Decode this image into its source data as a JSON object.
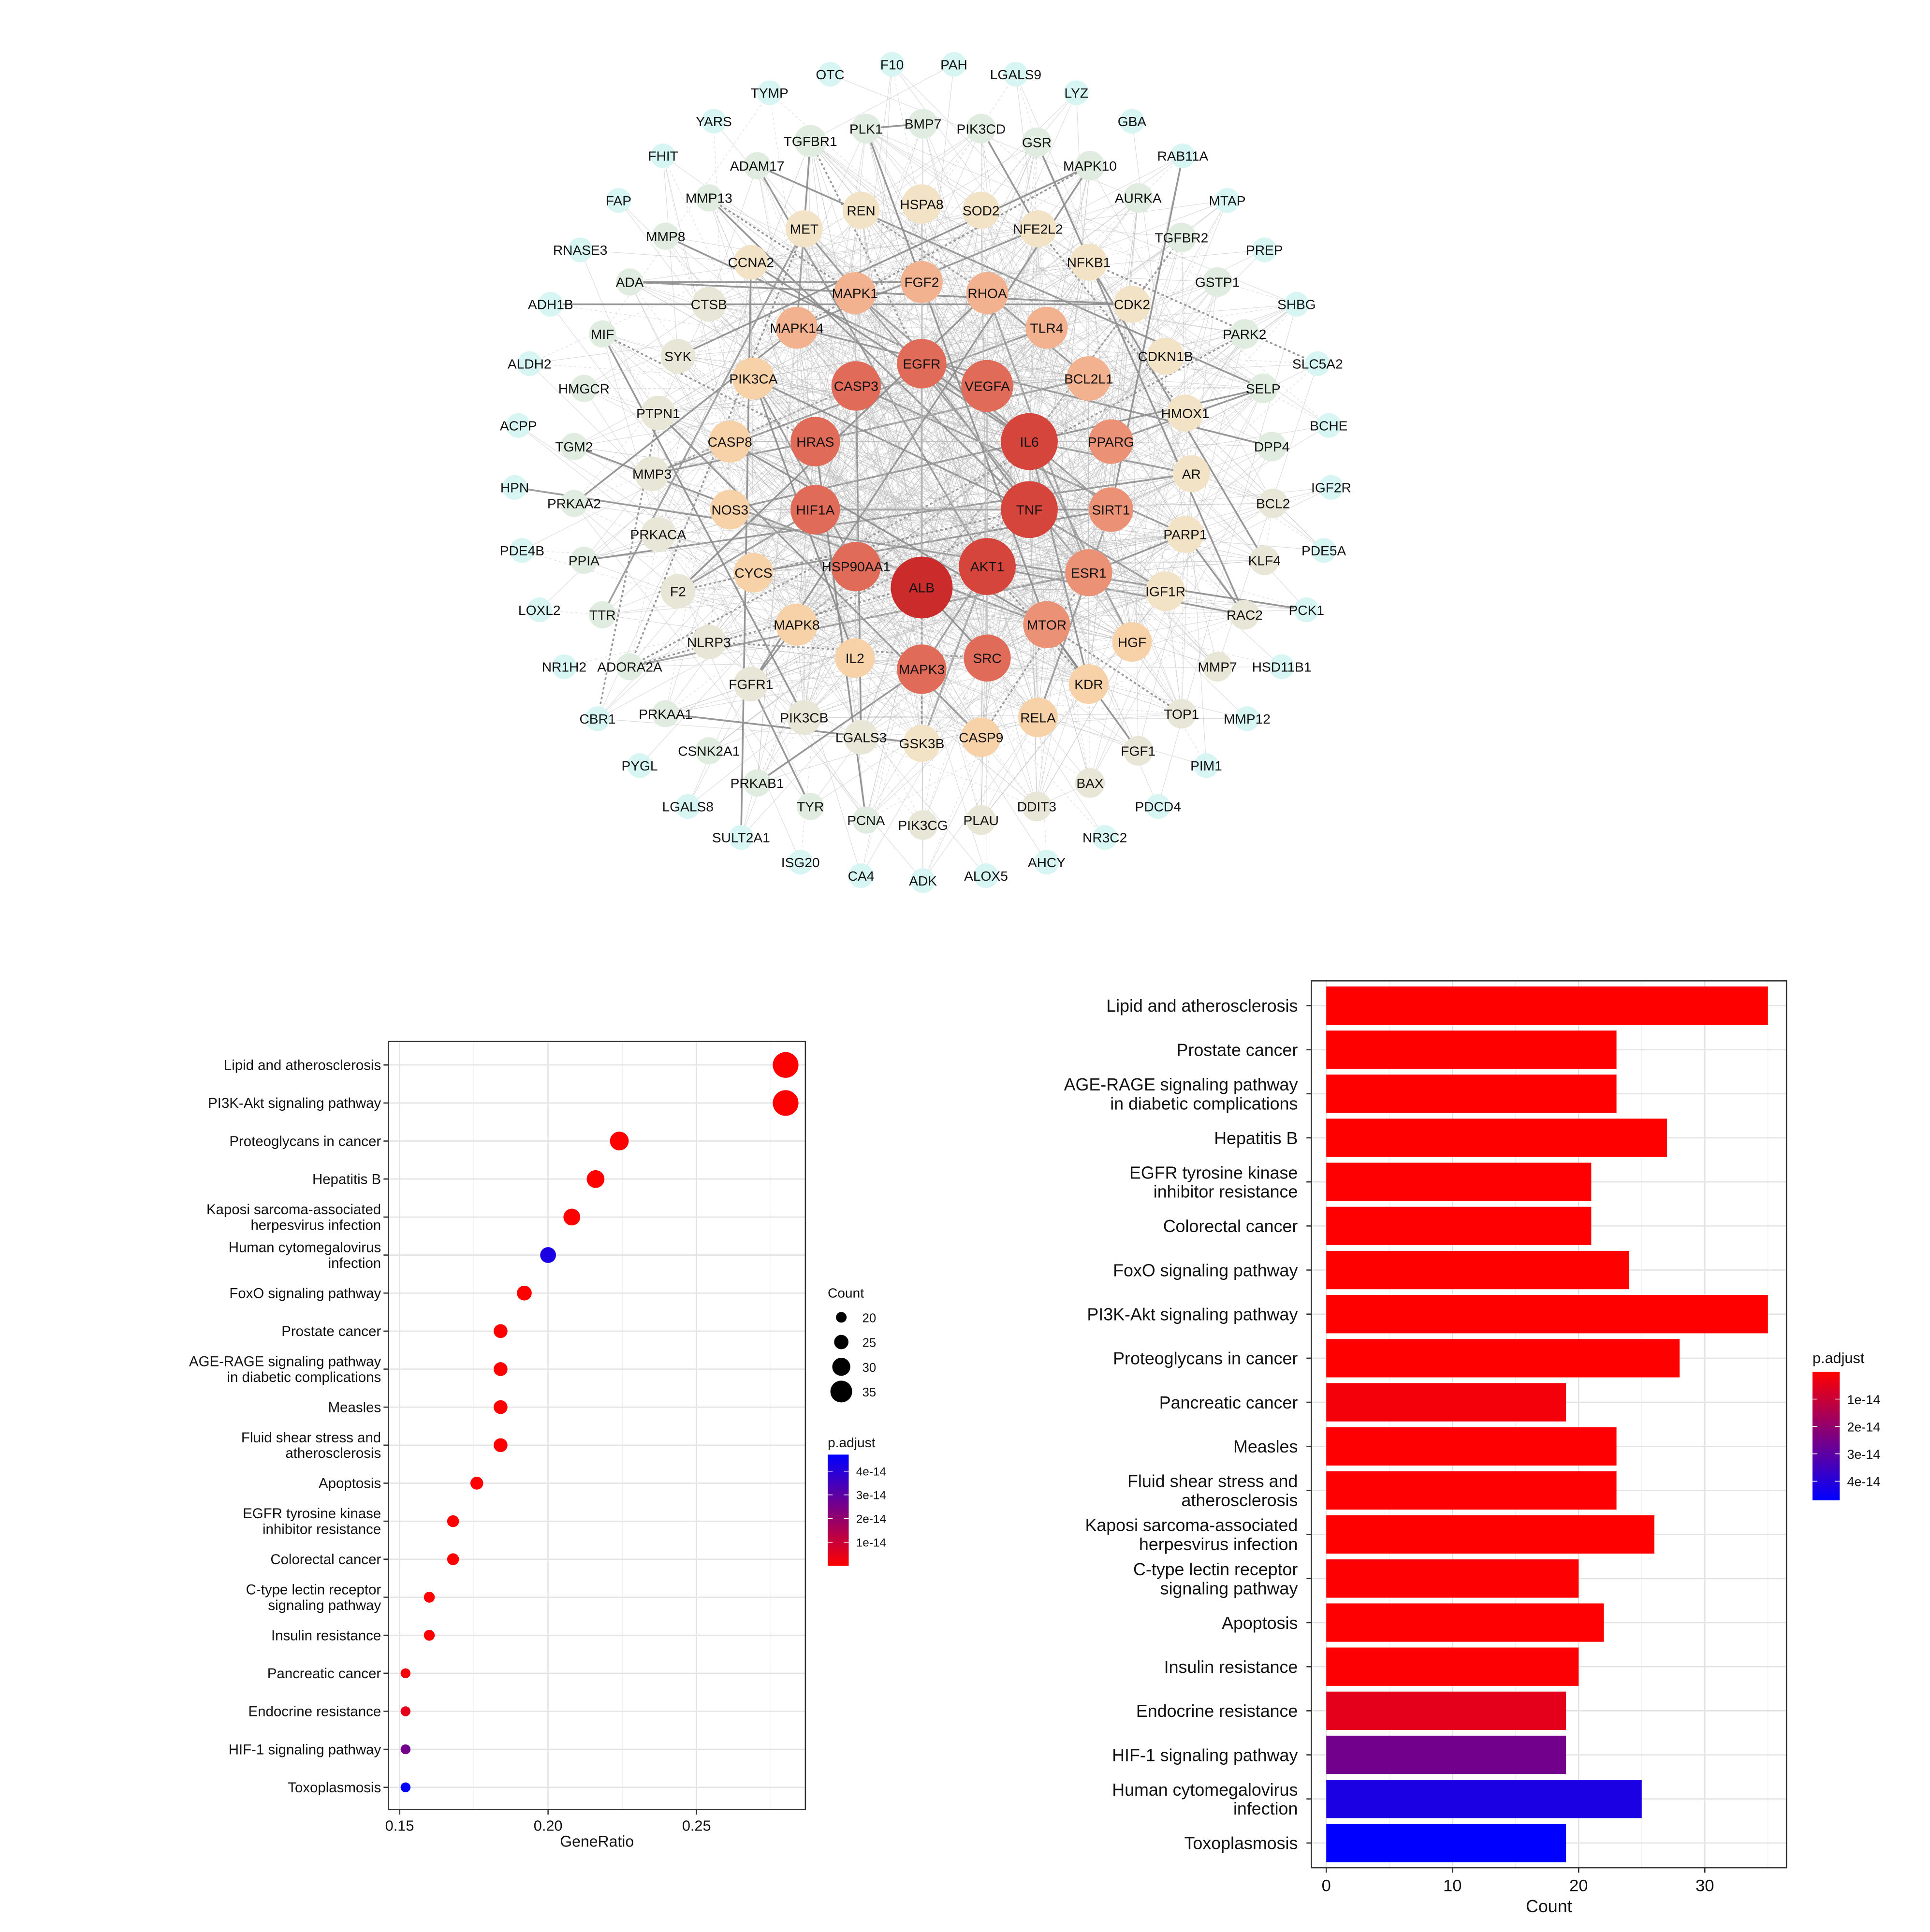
{
  "network": {
    "nodes": [
      "ALB",
      "AKT1",
      "TNF",
      "IL6",
      "VEGFA",
      "EGFR",
      "CASP3",
      "HRAS",
      "HIF1A",
      "HSP90AA1",
      "MAPK3",
      "SRC",
      "MTOR",
      "ESR1",
      "SIRT1",
      "PPARG",
      "BCL2L1",
      "TLR4",
      "RHOA",
      "FGF2",
      "MAPK1",
      "MAPK14",
      "PIK3CA",
      "CASP8",
      "NOS3",
      "CYCS",
      "MAPK8",
      "IL2",
      "REN",
      "HSPA8",
      "SOD2",
      "NFE2L2",
      "NFKB1",
      "CDK2",
      "CDKN1B",
      "HMOX1",
      "AR",
      "PARP1",
      "IGF1R",
      "HGF",
      "KDR",
      "RELA",
      "CASP9",
      "GSK3B",
      "LGALS3",
      "PIK3CB",
      "FGFR1",
      "NLRP3",
      "F2",
      "PRKACA",
      "MMP3",
      "PTPN1",
      "SYK",
      "CTSB",
      "CCNA2",
      "MET",
      "TGFBR1",
      "PLK1",
      "BMP7",
      "PIK3CD",
      "GSR",
      "MAPK10",
      "AURKA",
      "TGFBR2",
      "GSTP1",
      "PARK2",
      "SELP",
      "DPP4",
      "BCL2",
      "KLF4",
      "RAC2",
      "MMP7",
      "TOP1",
      "FGF1",
      "BAX",
      "DDIT3",
      "PLAU",
      "PIK3CG",
      "PCNA",
      "TYR",
      "PRKAB1",
      "CSNK2A1",
      "PRKAA1",
      "ADORA2A",
      "TTR",
      "PPIA",
      "PRKAA2",
      "TGM2",
      "HMGCR",
      "MIF",
      "ADA",
      "MMP8",
      "MMP13",
      "ADAM17",
      "OTC",
      "F10",
      "PAH",
      "LGALS9",
      "LYZ",
      "GBA",
      "RAB11A",
      "MTAP",
      "PREP",
      "SHBG",
      "SLC5A2",
      "BCHE",
      "IGF2R",
      "PDE5A",
      "PCK1",
      "HSD11B1",
      "MMP12",
      "PIM1",
      "PDCD4",
      "NR3C2",
      "AHCY",
      "ALOX5",
      "ADK",
      "CA4",
      "ISG20",
      "SULT2A1",
      "LGALS8",
      "PYGL",
      "CBR1",
      "NR1H2",
      "LOXL2",
      "PDE4B",
      "HPN",
      "ACPP",
      "ALDH2",
      "ADH1B",
      "RNASE3",
      "FAP",
      "FHIT",
      "YARS",
      "TYMP"
    ]
  },
  "chart_data": [
    {
      "type": "scatter",
      "title": "",
      "xlabel": "GeneRatio",
      "ylabel": "",
      "xlim": [
        0.145,
        0.286
      ],
      "xticks": [
        "0.15",
        "0.20",
        "0.25"
      ],
      "xtick_values": [
        0.15,
        0.2,
        0.25
      ],
      "categories": [
        "Lipid and atherosclerosis",
        "PI3K-Akt signaling pathway",
        "Proteoglycans in cancer",
        "Hepatitis B",
        "Kaposi sarcoma-associated\nherpesvirus infection",
        "Human cytomegalovirus\ninfection",
        "FoxO signaling pathway",
        "Prostate cancer",
        "AGE-RAGE signaling pathway\nin diabetic complications",
        "Measles",
        "Fluid shear stress and\natherosclerosis",
        "Apoptosis",
        "EGFR tyrosine kinase\ninhibitor resistance",
        "Colorectal cancer",
        "C-type lectin receptor\nsignaling pathway",
        "Insulin resistance",
        "Pancreatic cancer",
        "Endocrine resistance",
        "HIF-1 signaling pathway",
        "Toxoplasmosis"
      ],
      "gene_ratio": [
        0.28,
        0.28,
        0.224,
        0.216,
        0.208,
        0.2,
        0.192,
        0.184,
        0.184,
        0.184,
        0.184,
        0.176,
        0.168,
        0.168,
        0.16,
        0.16,
        0.152,
        0.152,
        0.152,
        0.152
      ],
      "count": [
        35,
        35,
        28,
        27,
        26,
        25,
        24,
        23,
        23,
        23,
        23,
        22,
        21,
        21,
        20,
        20,
        19,
        19,
        19,
        19
      ],
      "p_adjust": [
        1e-20,
        2e-18,
        5e-19,
        1e-17,
        5e-17,
        4.2e-14,
        1e-18,
        1e-18,
        1e-18,
        1e-16,
        1e-16,
        1e-16,
        1e-16,
        1e-16,
        3e-16,
        5e-16,
        2e-15,
        5e-15,
        2.6e-14,
        4.7e-14
      ],
      "legend_size": {
        "title": "Count",
        "values": [
          20,
          25,
          30,
          35
        ],
        "labels": [
          "20",
          "25",
          "30",
          "35"
        ]
      },
      "legend_color": {
        "title": "p.adjust",
        "range": [
          0,
          4.7e-14
        ],
        "labels": [
          "4e-14",
          "3e-14",
          "2e-14",
          "1e-14"
        ],
        "values": [
          4e-14,
          3e-14,
          2e-14,
          1e-14
        ],
        "low_color": "#ff0000",
        "high_color": "#0000ff"
      },
      "legend_placement": "right"
    },
    {
      "type": "bar",
      "orientation": "horizontal",
      "title": "",
      "xlabel": "Count",
      "ylabel": "",
      "xlim": [
        -1.7,
        36.7
      ],
      "xticks": [
        "0",
        "10",
        "20",
        "30"
      ],
      "xtick_values": [
        0,
        10,
        20,
        30
      ],
      "categories": [
        "Lipid and atherosclerosis",
        "Prostate cancer",
        "AGE-RAGE signaling pathway\nin diabetic complications",
        "Hepatitis B",
        "EGFR tyrosine kinase\ninhibitor resistance",
        "Colorectal cancer",
        "FoxO signaling pathway",
        "PI3K-Akt signaling pathway",
        "Proteoglycans in cancer",
        "Pancreatic cancer",
        "Measles",
        "Fluid shear stress and\natherosclerosis",
        "Kaposi sarcoma-associated\nherpesvirus infection",
        "C-type lectin receptor\nsignaling pathway",
        "Apoptosis",
        "Insulin resistance",
        "Endocrine resistance",
        "HIF-1 signaling pathway",
        "Human cytomegalovirus\ninfection",
        "Toxoplasmosis"
      ],
      "values": [
        35,
        23,
        23,
        27,
        21,
        21,
        24,
        35,
        28,
        19,
        23,
        23,
        26,
        20,
        22,
        20,
        19,
        19,
        25,
        19
      ],
      "p_adjust": [
        1e-20,
        1e-18,
        1e-18,
        1e-17,
        1e-16,
        1e-16,
        1e-18,
        2e-18,
        5e-19,
        2e-15,
        1e-16,
        1e-16,
        5e-17,
        3e-16,
        1e-16,
        5e-16,
        5e-15,
        2.6e-14,
        4.2e-14,
        4.7e-14
      ],
      "legend_color": {
        "title": "p.adjust",
        "range": [
          0,
          4.7e-14
        ],
        "labels": [
          "1e-14",
          "2e-14",
          "3e-14",
          "4e-14"
        ],
        "values": [
          1e-14,
          2e-14,
          3e-14,
          4e-14
        ],
        "low_color": "#ff0000",
        "high_color": "#0000ff"
      },
      "legend_placement": "right"
    }
  ]
}
